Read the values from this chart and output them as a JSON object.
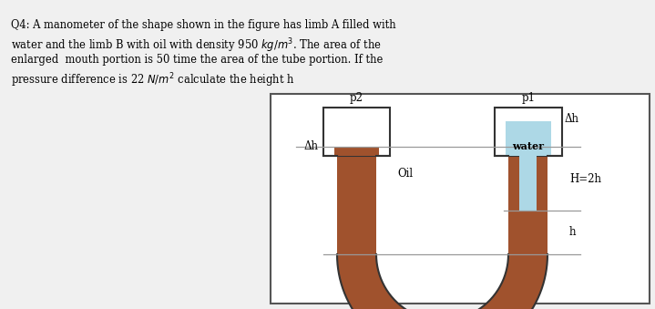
{
  "fig_width": 7.19,
  "fig_height": 3.39,
  "dpi": 100,
  "bg_color": "#f0f0f0",
  "oil_color": "#A0522D",
  "water_color": "#ADD8E6",
  "wall_color": "#7B3F00",
  "edge_color": "#333333",
  "text_color": "#000000",
  "question_lines": [
    "Q4: A manometer of the shape shown in the figure has limb A filled with",
    "water and the limb B with oil with density 950 $kg/m^3$. The area of the",
    "enlarged  mouth portion is 50 time the area of the tube portion. If the",
    "pressure difference is 22 $N/m^2$ calculate the height h"
  ],
  "labels": {
    "p2": "p2",
    "p1": "p1",
    "dh_left": "Δh",
    "dh_right": "Δh",
    "oil": "Oil",
    "water": "water",
    "H": "H=2h",
    "h": "h"
  }
}
